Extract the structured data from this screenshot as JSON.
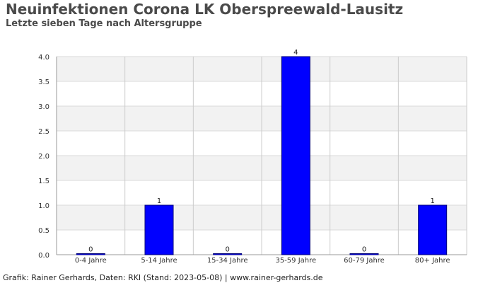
{
  "header": {
    "title": "Neuinfektionen Corona LK Oberspreewald-Lausitz",
    "subtitle": "Letzte sieben Tage nach Altersgruppe"
  },
  "footer": {
    "credit": "Grafik: Rainer Gerhards, Daten: RKI (Stand: 2023-05-08) | www.rainer-gerhards.de"
  },
  "colors": {
    "bar": "#0000ff",
    "bar_stroke": "#00007a",
    "band": "#f2f2f2",
    "grid": "#d9d9d9",
    "axis": "#999999"
  },
  "chart_data": {
    "type": "bar",
    "title": "Neuinfektionen Corona LK Oberspreewald-Lausitz",
    "subtitle": "Letzte sieben Tage nach Altersgruppe",
    "categories": [
      "0-4 Jahre",
      "5-14 Jahre",
      "15-34 Jahre",
      "35-59 Jahre",
      "60-79 Jahre",
      "80+ Jahre"
    ],
    "values": [
      0,
      1,
      0,
      4,
      0,
      1
    ],
    "data_labels": [
      "0",
      "1",
      "0",
      "4",
      "0",
      "1"
    ],
    "ylim": [
      0,
      4
    ],
    "yticks": [
      0,
      0.5,
      1,
      1.5,
      2,
      2.5,
      3,
      3.5,
      4
    ],
    "ytick_labels": [
      "0.0",
      "0.5",
      "1.0",
      "1.5",
      "2.0",
      "2.5",
      "3.0",
      "3.5",
      "4.0"
    ],
    "grid": true,
    "legend": "none"
  }
}
